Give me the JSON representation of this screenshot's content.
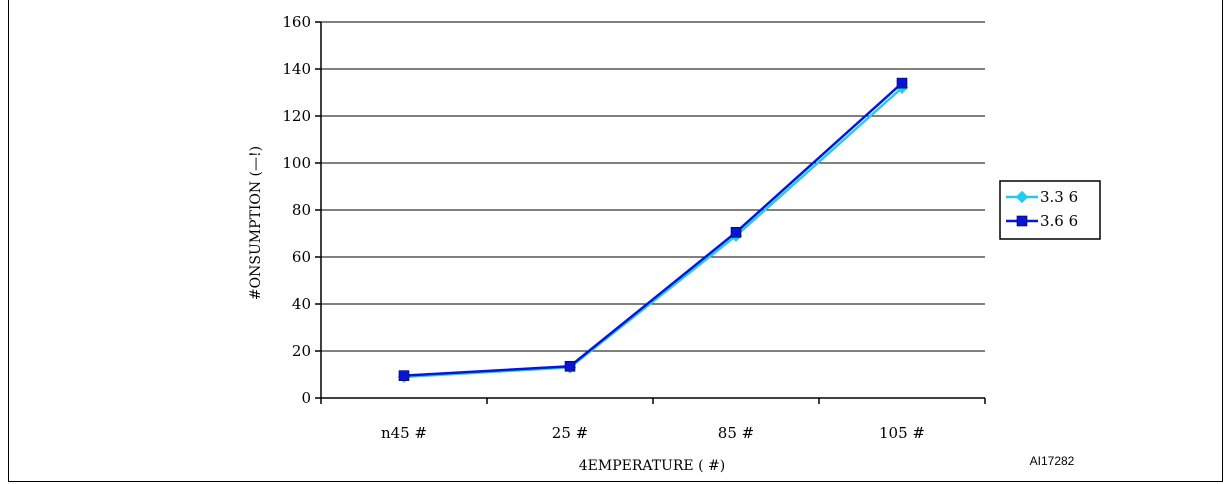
{
  "chart_data": {
    "type": "line",
    "categories": [
      "n45 #",
      "25 #",
      "85 #",
      "105 #"
    ],
    "series": [
      {
        "name": "3.3 6",
        "color": "#22ccee",
        "marker": "diamond",
        "values": [
          9,
          13,
          69,
          132
        ]
      },
      {
        "name": "3.6 6",
        "color": "#0a14d8",
        "marker": "square",
        "values": [
          9.5,
          13.5,
          70.5,
          134
        ]
      }
    ],
    "ylim": [
      0,
      160
    ],
    "yticks": [
      0,
      20,
      40,
      60,
      80,
      100,
      120,
      140,
      160
    ],
    "xlabel": "4EMPERATURE ( #)",
    "ylabel": "#ONSUMPTION (—!)",
    "grid": true,
    "legend": "right"
  },
  "figure_ref": "AI17282"
}
